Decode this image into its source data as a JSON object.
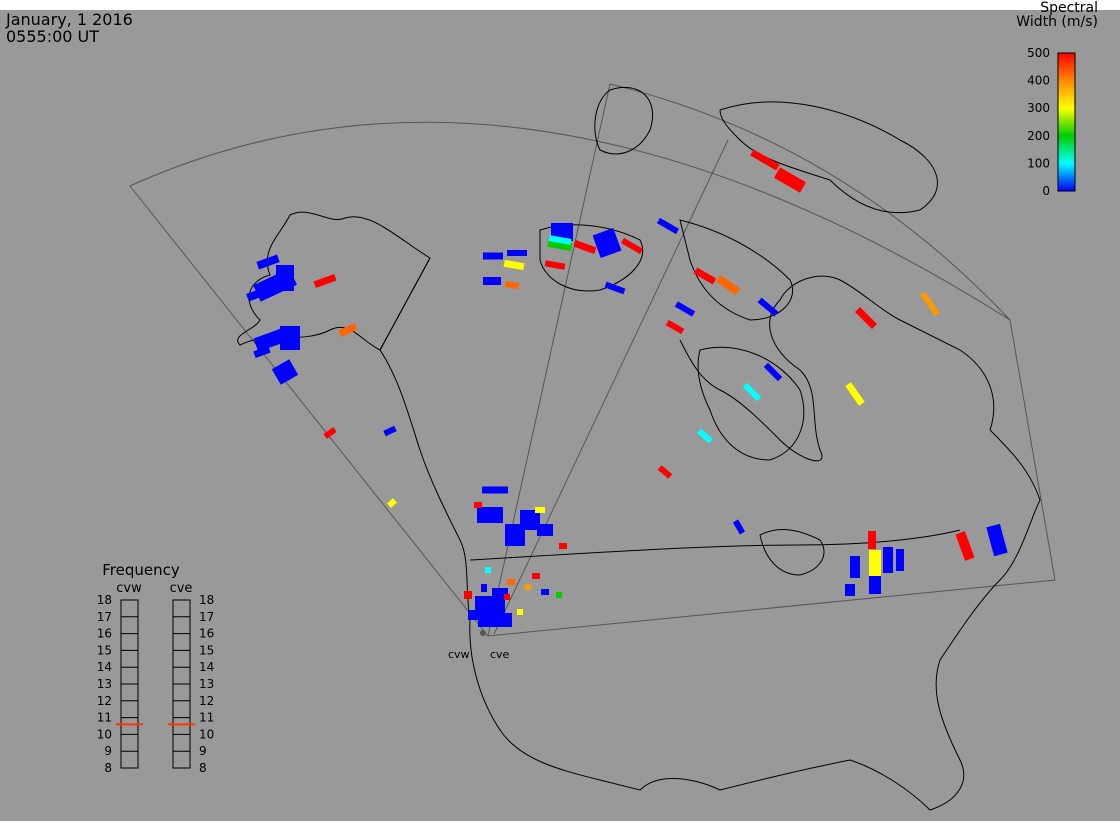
{
  "header": {
    "date": "January, 1 2016",
    "time": "0555:00 UT"
  },
  "colorbar": {
    "title_line1": "Spectral",
    "title_line2": "Width (m/s)",
    "ticks": [
      "500",
      "400",
      "300",
      "200",
      "100",
      "0"
    ],
    "colors": [
      "#ff0000",
      "#ff8800",
      "#ffff00",
      "#00cc00",
      "#00ffff",
      "#0000ff"
    ]
  },
  "radars": {
    "west_label": "cvw",
    "east_label": "cve"
  },
  "frequency": {
    "title": "Frequency",
    "panel_west_label": "cvw",
    "panel_east_label": "cve",
    "scale": [
      "18",
      "17",
      "16",
      "15",
      "14",
      "13",
      "12",
      "11",
      "10",
      "9",
      "8"
    ],
    "cvw_mhz": 10.6,
    "cve_mhz": 10.6,
    "indicator_color": "#ff3300"
  },
  "colors": {
    "background": "#999999",
    "lines": "#000000",
    "fov": "#555555"
  }
}
